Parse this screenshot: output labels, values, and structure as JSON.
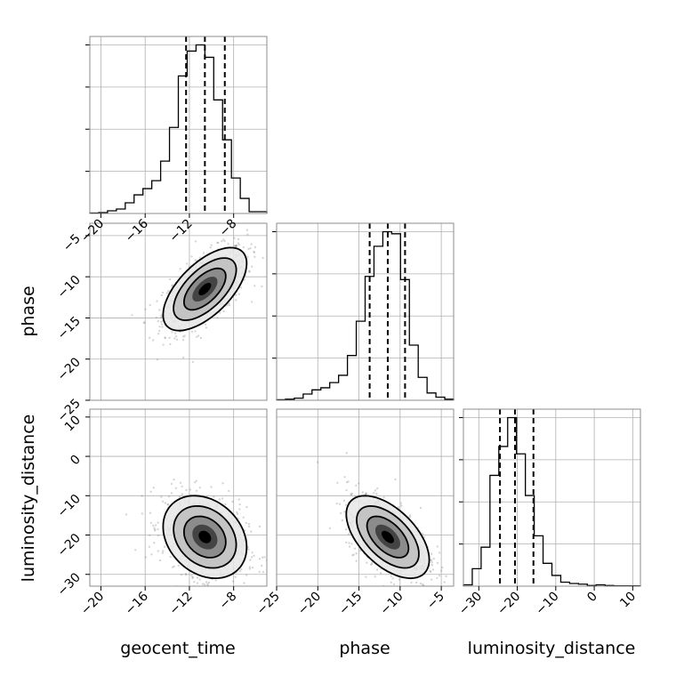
{
  "chart_data": {
    "type": "corner",
    "parameters": [
      {
        "name": "geocent_time",
        "label": "geocent_time",
        "range": [
          -21,
          -5
        ],
        "ticks": [
          -20,
          -16,
          -12,
          -8
        ],
        "mean": -10.6,
        "sd": 1.8,
        "quantiles": [
          -12.3,
          -10.6,
          -8.8
        ],
        "hist": [
          0.5,
          1.0,
          3.0,
          5.0,
          12.0,
          21.0,
          28.0,
          37.0,
          59.0,
          97.0,
          155.0,
          183.0,
          190.0,
          176.0,
          128.0,
          83.0,
          40.0,
          17.0,
          2.0,
          2.0
        ]
      },
      {
        "name": "phase",
        "label": "phase",
        "range": [
          -25,
          -3.5
        ],
        "ticks": [
          -25,
          -20,
          -15,
          -10,
          -5
        ],
        "mean": -11.5,
        "sd": 2.4,
        "quantiles": [
          -13.7,
          -11.5,
          -9.4
        ],
        "hist": [
          0.5,
          1.0,
          2.0,
          6.0,
          10.0,
          12.0,
          17.0,
          24.0,
          43.0,
          76.0,
          119.0,
          148.0,
          162.0,
          160.0,
          116.0,
          53.0,
          22.0,
          7.0,
          3.0,
          1.0
        ]
      },
      {
        "name": "luminosity_distance",
        "label": "luminosity_distance",
        "range": [
          -34,
          12
        ],
        "ticks": [
          -30,
          -20,
          -10,
          0,
          10
        ],
        "mean": -20.5,
        "sd": 5.0,
        "quantiles": [
          -24.5,
          -20.6,
          -15.8
        ],
        "hist": [
          2.0,
          26.0,
          58.0,
          165.0,
          208.0,
          251.0,
          197.0,
          135.0,
          75.0,
          34.0,
          16.0,
          6.0,
          4.0,
          3.0,
          1.0,
          2.0,
          1.0,
          0.5,
          0.5,
          0.5
        ]
      }
    ],
    "pairs": [
      {
        "x": "geocent_time",
        "y": "phase",
        "rho": 0.62,
        "ylim": [
          -25,
          -3.5
        ],
        "yticks": [
          -25,
          -20,
          -15,
          -10,
          -5
        ]
      },
      {
        "x": "geocent_time",
        "y": "luminosity_distance",
        "rho": -0.25,
        "ylim": [
          -33,
          12
        ],
        "yticks": [
          -30,
          -20,
          -10,
          0,
          10
        ]
      },
      {
        "x": "phase",
        "y": "luminosity_distance",
        "rho": -0.55,
        "ylim": [
          -33,
          12
        ],
        "yticks": [
          -30,
          -20,
          -10,
          0,
          10
        ]
      }
    ],
    "contour_levels": [
      "1-sigma",
      "1.5-sigma",
      "2-sigma"
    ],
    "grid": true,
    "colors": {
      "hist": "#000000",
      "points": "#8a8a8a",
      "frame": "#8c8c8c",
      "grid": "#b0b0b0"
    }
  }
}
